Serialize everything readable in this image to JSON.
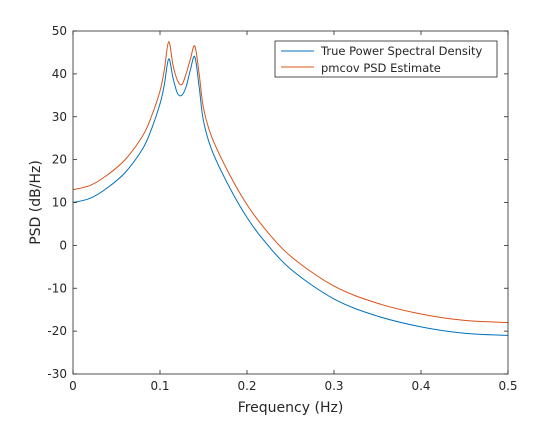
{
  "chart_data": {
    "type": "line",
    "title": "",
    "xlabel": "Frequency (Hz)",
    "ylabel": "PSD (dB/Hz)",
    "xlim": [
      0,
      0.5
    ],
    "ylim": [
      -30,
      50
    ],
    "x_ticks": [
      0,
      0.1,
      0.2,
      0.3,
      0.4,
      0.5
    ],
    "x_tick_labels": [
      "0",
      "0.1",
      "0.2",
      "0.3",
      "0.4",
      "0.5"
    ],
    "y_ticks": [
      -30,
      -20,
      -10,
      0,
      10,
      20,
      30,
      40,
      50
    ],
    "y_tick_labels": [
      "-30",
      "-20",
      "-10",
      "0",
      "10",
      "20",
      "30",
      "40",
      "50"
    ],
    "grid": false,
    "legend_position": "top-right",
    "series": [
      {
        "name": "True Power Spectral Density",
        "color": "#0072BD",
        "x": [
          0,
          0.02,
          0.04,
          0.06,
          0.08,
          0.09,
          0.1,
          0.105,
          0.11,
          0.115,
          0.12,
          0.125,
          0.13,
          0.135,
          0.14,
          0.145,
          0.15,
          0.16,
          0.18,
          0.2,
          0.22,
          0.25,
          0.3,
          0.35,
          0.4,
          0.45,
          0.5
        ],
        "y": [
          10,
          11,
          13.5,
          17,
          22.5,
          27,
          33,
          37.5,
          43.5,
          39,
          35.5,
          35,
          37,
          41,
          44,
          37,
          29,
          22,
          13.5,
          6.5,
          1,
          -5.5,
          -12.5,
          -16.5,
          -19,
          -20.5,
          -21
        ]
      },
      {
        "name": "pmcov PSD Estimate",
        "color": "#D95319",
        "x": [
          0,
          0.02,
          0.04,
          0.06,
          0.08,
          0.09,
          0.1,
          0.105,
          0.11,
          0.115,
          0.12,
          0.125,
          0.13,
          0.135,
          0.14,
          0.145,
          0.15,
          0.16,
          0.18,
          0.2,
          0.22,
          0.25,
          0.3,
          0.35,
          0.4,
          0.45,
          0.5
        ],
        "y": [
          13,
          14,
          16.5,
          20,
          25.5,
          30,
          36,
          41,
          47.5,
          42,
          38.5,
          37.5,
          40,
          43.5,
          46.5,
          40,
          32,
          25,
          16.5,
          9.5,
          4,
          -2.5,
          -9.5,
          -13.5,
          -16,
          -17.5,
          -18
        ]
      }
    ]
  }
}
